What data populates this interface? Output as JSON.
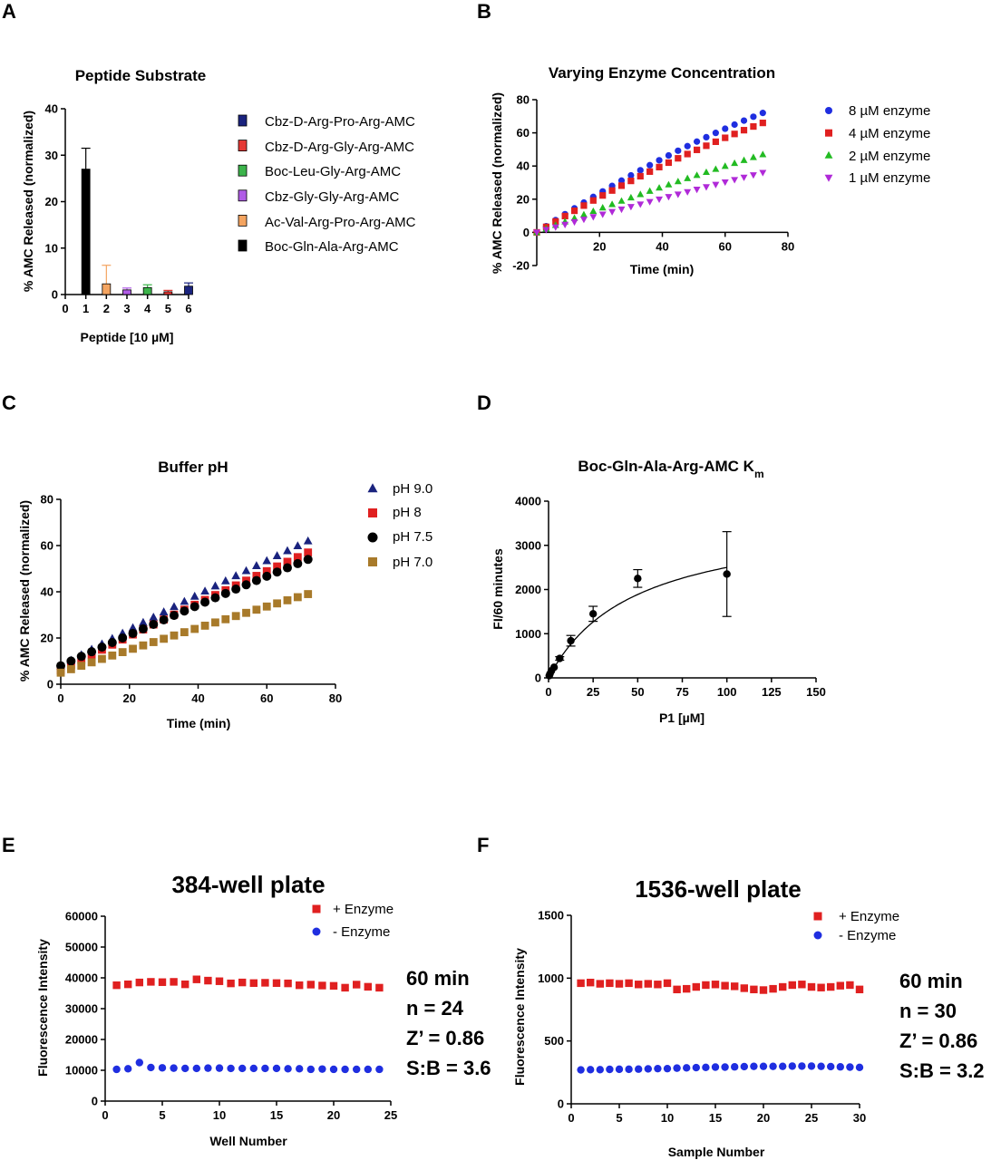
{
  "panels": {
    "A": "A",
    "B": "B",
    "C": "C",
    "D": "D",
    "E": "E",
    "F": "F"
  },
  "chart_data": [
    {
      "id": "A",
      "type": "bar",
      "title": "Peptide Substrate",
      "xlabel": "Peptide [10 µM]",
      "ylabel": "% AMC Released (normalized)",
      "xlim": [
        0,
        6
      ],
      "ylim": [
        0,
        40
      ],
      "xticks": [
        "0",
        "1",
        "2",
        "3",
        "4",
        "5",
        "6"
      ],
      "yticks": [
        "0",
        "10",
        "20",
        "30",
        "40"
      ],
      "bars": [
        {
          "x": 1,
          "value": 27,
          "err": 4.5,
          "color": "#000000",
          "name": "Boc-Gln-Ala-Arg-AMC"
        },
        {
          "x": 2,
          "value": 2.3,
          "err": 4,
          "color": "#f4a460",
          "name": "Ac-Val-Arg-Pro-Arg-AMC"
        },
        {
          "x": 3,
          "value": 1.0,
          "err": 0.4,
          "color": "#b05ce6",
          "name": "Cbz-Gly-Gly-Arg-AMC"
        },
        {
          "x": 4,
          "value": 1.5,
          "err": 0.6,
          "color": "#3cb44b",
          "name": "Boc-Leu-Gly-Arg-AMC"
        },
        {
          "x": 5,
          "value": 0.6,
          "err": 0.3,
          "color": "#e53935",
          "name": "Cbz-D-Arg-Gly-Arg-AMC"
        },
        {
          "x": 6,
          "value": 1.8,
          "err": 0.7,
          "color": "#1a237e",
          "name": "Cbz-D-Arg-Pro-Arg-AMC"
        }
      ],
      "legend": [
        {
          "label": "Cbz-D-Arg-Pro-Arg-AMC",
          "color": "#1a237e"
        },
        {
          "label": "Cbz-D-Arg-Gly-Arg-AMC",
          "color": "#e53935"
        },
        {
          "label": "Boc-Leu-Gly-Arg-AMC",
          "color": "#3cb44b"
        },
        {
          "label": "Cbz-Gly-Gly-Arg-AMC",
          "color": "#b05ce6"
        },
        {
          "label": "Ac-Val-Arg-Pro-Arg-AMC",
          "color": "#f4a460"
        },
        {
          "label": "Boc-Gln-Ala-Arg-AMC",
          "color": "#000000"
        }
      ]
    },
    {
      "id": "B",
      "type": "scatter",
      "title": "Varying Enzyme Concentration",
      "xlabel": "Time (min)",
      "ylabel": "% AMC Released (normalized)",
      "xlim": [
        0,
        80
      ],
      "ylim": [
        -20,
        80
      ],
      "xticks": [
        "20",
        "40",
        "60",
        "80"
      ],
      "yticks": [
        "-20",
        "0",
        "20",
        "40",
        "60",
        "80"
      ],
      "x_range": [
        0,
        72,
        3
      ],
      "series": [
        {
          "name": "8 µM enzyme",
          "color": "#1f2ee0",
          "marker": "circle",
          "final": 72,
          "curve": 0.25
        },
        {
          "name": "4 µM enzyme",
          "color": "#e02020",
          "marker": "square",
          "final": 66,
          "curve": 0.22
        },
        {
          "name": "2 µM enzyme",
          "color": "#22bb22",
          "marker": "triangle-up",
          "final": 47,
          "curve": 0.12
        },
        {
          "name": "1 µM enzyme",
          "color": "#b02ad8",
          "marker": "triangle-down",
          "final": 36,
          "curve": 0.05
        }
      ]
    },
    {
      "id": "C",
      "type": "scatter",
      "title": "Buffer pH",
      "xlabel": "Time (min)",
      "ylabel": "% AMC Released (normalized)",
      "xlim": [
        0,
        80
      ],
      "ylim": [
        0,
        80
      ],
      "xticks": [
        "0",
        "20",
        "40",
        "60",
        "80"
      ],
      "yticks": [
        "0",
        "20",
        "40",
        "60",
        "80"
      ],
      "x_range": [
        0,
        72,
        3
      ],
      "series": [
        {
          "name": "pH 9.0",
          "color": "#1a237e",
          "marker": "triangle-up",
          "start": 8,
          "final": 62
        },
        {
          "name": "pH 8",
          "color": "#e02020",
          "marker": "square",
          "start": 6,
          "final": 57
        },
        {
          "name": "pH 7.5",
          "color": "#000000",
          "marker": "circle",
          "start": 8,
          "final": 54
        },
        {
          "name": "pH 7.0",
          "color": "#a87a2a",
          "marker": "square",
          "start": 5,
          "final": 39
        }
      ]
    },
    {
      "id": "D",
      "type": "scatter",
      "title": "Boc-Gln-Ala-Arg-AMC K",
      "title_sub": "m",
      "xlabel": "P1 [µM]",
      "ylabel": "FI/60 minutes",
      "xlim": [
        0,
        150
      ],
      "ylim": [
        0,
        4000
      ],
      "xticks": [
        "0",
        "25",
        "50",
        "75",
        "100",
        "125",
        "150"
      ],
      "yticks": [
        "0",
        "1000",
        "2000",
        "3000",
        "4000"
      ],
      "points": [
        {
          "x": 0.4,
          "y": 50,
          "err": 0
        },
        {
          "x": 0.8,
          "y": 90,
          "err": 0
        },
        {
          "x": 1.6,
          "y": 160,
          "err": 0
        },
        {
          "x": 3.1,
          "y": 240,
          "err": 0
        },
        {
          "x": 6.25,
          "y": 440,
          "err": 40
        },
        {
          "x": 12.5,
          "y": 840,
          "err": 120
        },
        {
          "x": 25,
          "y": 1450,
          "err": 170
        },
        {
          "x": 50,
          "y": 2250,
          "err": 200
        },
        {
          "x": 100,
          "y": 2350,
          "err": 960
        }
      ],
      "fit": {
        "vmax": 3700,
        "km": 48
      }
    },
    {
      "id": "E",
      "type": "scatter",
      "title": "384-well plate",
      "xlabel": "Well Number",
      "ylabel": "Fluorescence Intensity",
      "xlim": [
        0,
        25
      ],
      "ylim": [
        0,
        60000
      ],
      "xticks": [
        "0",
        "5",
        "10",
        "15",
        "20",
        "25"
      ],
      "yticks": [
        "0",
        "10000",
        "20000",
        "30000",
        "40000",
        "50000",
        "60000"
      ],
      "series": [
        {
          "name": "+ Enzyme",
          "color": "#e02020",
          "marker": "square",
          "x": [
            1,
            2,
            3,
            4,
            5,
            6,
            7,
            8,
            9,
            10,
            11,
            12,
            13,
            14,
            15,
            16,
            17,
            18,
            19,
            20,
            21,
            22,
            23,
            24
          ],
          "y": [
            37600,
            37900,
            38500,
            38700,
            38600,
            38700,
            37900,
            39500,
            39100,
            38900,
            38200,
            38500,
            38300,
            38400,
            38300,
            38200,
            37600,
            37800,
            37500,
            37400,
            36800,
            37800,
            37100,
            36800
          ]
        },
        {
          "name": "- Enzyme",
          "color": "#1f2ee0",
          "marker": "circle",
          "x": [
            1,
            2,
            3,
            4,
            5,
            6,
            7,
            8,
            9,
            10,
            11,
            12,
            13,
            14,
            15,
            16,
            17,
            18,
            19,
            20,
            21,
            22,
            23,
            24
          ],
          "y": [
            10300,
            10500,
            12500,
            10900,
            10800,
            10700,
            10600,
            10600,
            10700,
            10700,
            10600,
            10600,
            10600,
            10600,
            10600,
            10500,
            10500,
            10300,
            10400,
            10300,
            10300,
            10300,
            10300,
            10300
          ]
        }
      ],
      "stats": [
        "60 min",
        "n = 24",
        "Z’ = 0.86",
        "S:B = 3.6"
      ]
    },
    {
      "id": "F",
      "type": "scatter",
      "title": "1536-well plate",
      "xlabel": "Sample Number",
      "ylabel": "Fluorescence Intensity",
      "xlim": [
        0,
        30
      ],
      "ylim": [
        0,
        1500
      ],
      "xticks": [
        "0",
        "5",
        "10",
        "15",
        "20",
        "25",
        "30"
      ],
      "yticks": [
        "0",
        "500",
        "1000",
        "1500"
      ],
      "series": [
        {
          "name": "+ Enzyme",
          "color": "#e02020",
          "marker": "square",
          "x": [
            1,
            2,
            3,
            4,
            5,
            6,
            7,
            8,
            9,
            10,
            11,
            12,
            13,
            14,
            15,
            16,
            17,
            18,
            19,
            20,
            21,
            22,
            23,
            24,
            25,
            26,
            27,
            28,
            29,
            30
          ],
          "y": [
            960,
            965,
            955,
            960,
            955,
            960,
            950,
            955,
            950,
            960,
            910,
            915,
            930,
            945,
            950,
            940,
            935,
            920,
            910,
            905,
            915,
            930,
            945,
            950,
            930,
            925,
            930,
            940,
            945,
            910
          ]
        },
        {
          "name": "- Enzyme",
          "color": "#1f2ee0",
          "marker": "circle",
          "x": [
            1,
            2,
            3,
            4,
            5,
            6,
            7,
            8,
            9,
            10,
            11,
            12,
            13,
            14,
            15,
            16,
            17,
            18,
            19,
            20,
            21,
            22,
            23,
            24,
            25,
            26,
            27,
            28,
            29,
            30
          ],
          "y": [
            270,
            272,
            272,
            274,
            275,
            275,
            276,
            278,
            280,
            280,
            284,
            286,
            288,
            290,
            292,
            292,
            294,
            296,
            298,
            298,
            298,
            298,
            300,
            300,
            300,
            298,
            296,
            294,
            292,
            290
          ]
        }
      ],
      "stats": [
        "60 min",
        "n = 30",
        "Z’ = 0.86",
        "S:B = 3.2"
      ]
    }
  ]
}
